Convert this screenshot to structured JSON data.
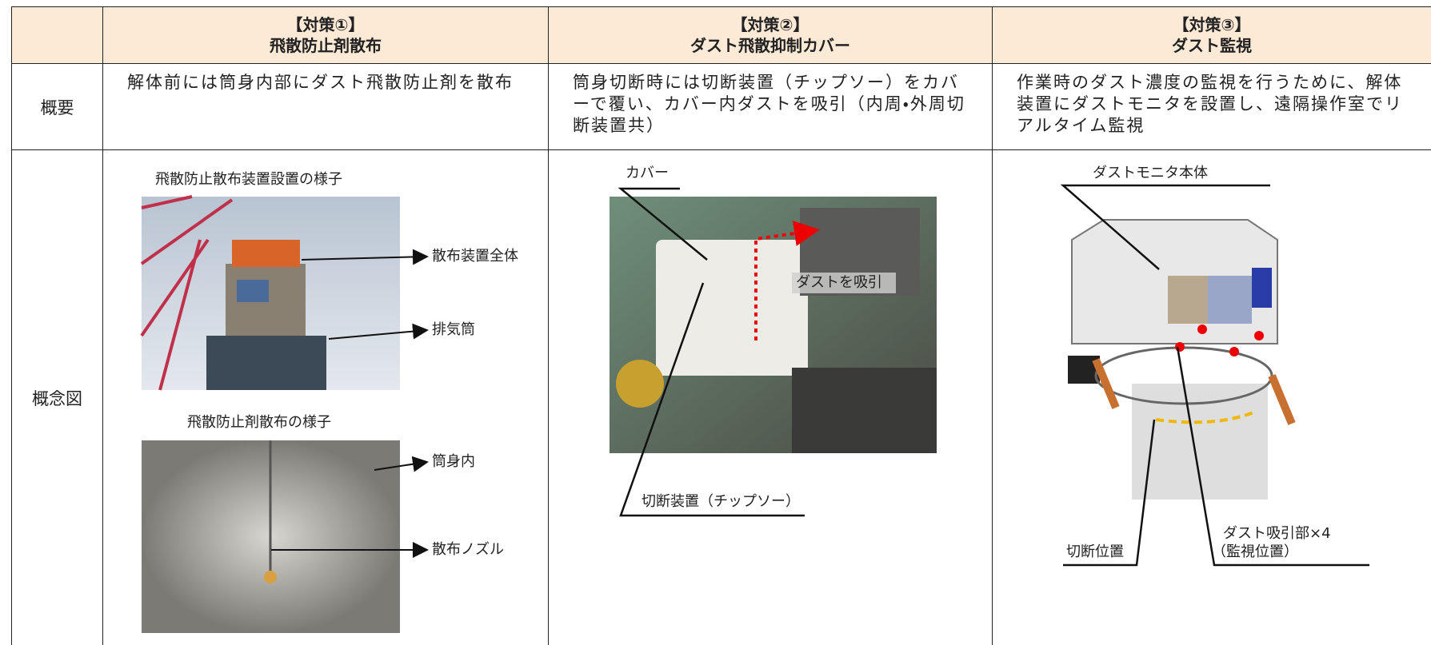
{
  "table": {
    "header": [
      {
        "tag": "【対策①】",
        "title": "飛散防止剤散布"
      },
      {
        "tag": "【対策②】",
        "title": "ダスト飛散抑制カバー"
      },
      {
        "tag": "【対策③】",
        "title": "ダスト監視"
      }
    ],
    "rows": [
      {
        "label": "概要",
        "cells": [
          "解体前には筒身内部にダスト飛散防止剤を散布",
          "筒身切断時には切断装置（チップソー）をカバーで覆い、カバー内ダストを吸引（内周・外周切断装置共）",
          "作業時のダスト濃度の監視を行うために、解体装置にダストモニタを設置し、遠隔操作室でリアルタイム監視"
        ]
      },
      {
        "label": "概念図"
      }
    ]
  },
  "figures": [
    {
      "captions": [
        "飛散防止散布装置設置の様子",
        "飛散防止剤散布の様子"
      ],
      "labels": [
        "散布装置全体",
        "排気筒",
        "筒身内",
        "散布ノズル"
      ]
    },
    {
      "labels": [
        "カバー",
        "ダストを吸引",
        "切断装置（チップソー）"
      ]
    },
    {
      "labels": [
        "ダストモニタ本体",
        "ダスト吸引部×4",
        "（監視位置）",
        "切断位置"
      ]
    }
  ]
}
